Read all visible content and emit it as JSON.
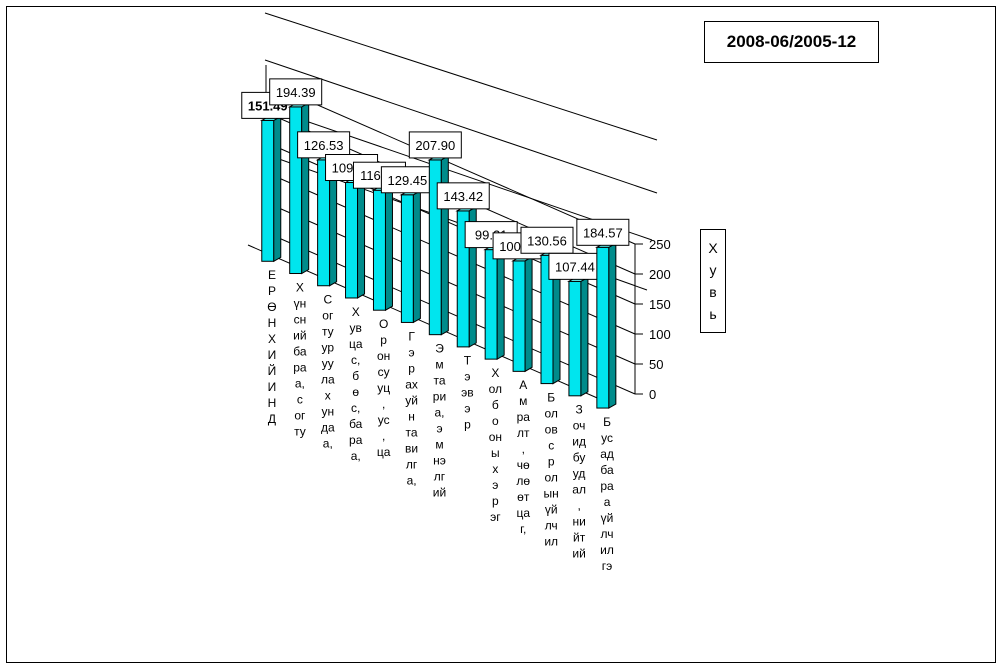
{
  "chart_data": {
    "type": "bar",
    "title": "2008-06/2005-12",
    "ylabel": "Хувь",
    "ylim": [
      0,
      250
    ],
    "yticks": [
      "0",
      "50",
      "100",
      "150",
      "200",
      "250"
    ],
    "categories": [
      "ЕРӨНХИЙ ИНДЕКС",
      "Хүнсний бараа, согтууруулах ундаа",
      "Согтууруулах ундаа, тамхи",
      "Хувцас, бөс бараа, гутал",
      "Орон сууц, ус, цахилгаан",
      "Гэр ахуйн тавилга,",
      "Эмнэлгийн тусламж, эм",
      "Тээвэр",
      "Холбооны хэрэглээ",
      "Амралт, чөлөөт цаг,",
      "Боловсролын үйлчилгээ",
      "Зочид буудал, нийтийн хоол",
      "Бусад бараа, үйлчилгээ"
    ],
    "values": [
      151.49,
      194.39,
      126.53,
      109.12,
      116.66,
      129.45,
      207.9,
      143.42,
      99.21,
      100.85,
      130.56,
      107.44,
      184.57
    ],
    "value_labels": [
      "151.49",
      "194.39",
      "126.53",
      "109.12",
      "116.66",
      "129.45",
      "207.90",
      "143.42",
      "99.21",
      "100.85",
      "130.56",
      "107.44",
      "184.57"
    ],
    "category_labels_wrapped": [
      [
        "Е",
        "Р",
        "Ө",
        "Н",
        "Х",
        "И",
        "Й",
        "И",
        "Н",
        "Д"
      ],
      [
        "Х",
        "үн",
        "сн",
        "ий",
        "ба",
        "ра",
        "а,",
        "с",
        "ог",
        "ту"
      ],
      [
        "С",
        "ог",
        "ту",
        "ур",
        "уу",
        "ла",
        "х",
        "ун",
        "да",
        "а,"
      ],
      [
        "Х",
        "ув",
        "ца",
        "с,",
        "б",
        "ө",
        "с,",
        "ба",
        "ра",
        "а,"
      ],
      [
        "О",
        "р",
        "он",
        "су",
        "уц",
        ",",
        "ус",
        ",",
        "ца"
      ],
      [
        "Г",
        "э",
        "р",
        "ах",
        "уй",
        "н",
        "та",
        "ви",
        "лг",
        "а,"
      ],
      [
        "Э",
        "м",
        "та",
        "ри",
        "а,",
        "э",
        "м",
        "нэ",
        "лг",
        "ий"
      ],
      [
        "Т",
        "э",
        "эв",
        "э",
        "р"
      ],
      [
        "Х",
        "ол",
        "б",
        "о",
        "он",
        "ы",
        "х",
        "э",
        "р",
        "эг"
      ],
      [
        "А",
        "м",
        "ра",
        "лт",
        ",",
        "чө",
        "лө",
        "өт",
        "ца",
        "г,"
      ],
      [
        "Б",
        "ол",
        "ов",
        "с",
        "р",
        "ол",
        "ын",
        "үй",
        "лч",
        "ил"
      ],
      [
        "З",
        "оч",
        "ид",
        "бу",
        "уд",
        "ал",
        ",",
        "ни",
        "йт",
        "ий"
      ],
      [
        "Б",
        "ус",
        "ад",
        "ба",
        "ра",
        "а",
        "үй",
        "лч",
        "ил",
        "гэ"
      ]
    ],
    "bar_color": "#00E5EE",
    "bar_side_color": "#008B8B",
    "bar_top_color": "#66FFFF",
    "grid": true,
    "legend": "none"
  }
}
